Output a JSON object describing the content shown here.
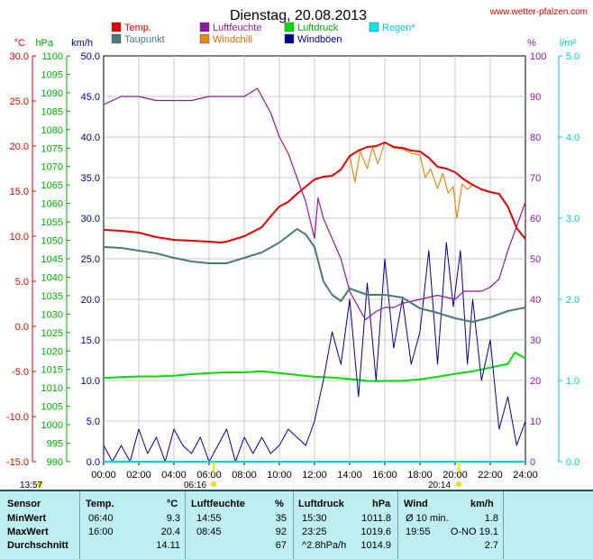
{
  "header": {
    "title": "Dienstag, 20.08.2013",
    "source": "www.wetter-pfalzen.com"
  },
  "units": {
    "temp": "°C",
    "pressure": "hPa",
    "wind": "km/h",
    "humidity": "%",
    "rain": "l/m²"
  },
  "colors": {
    "temp": "#e00000",
    "dewpoint": "#4a7a78",
    "humidity": "#8b1a9a",
    "windchill": "#e08a1a",
    "pressure": "#00dd00",
    "gust": "#00008b",
    "rain": "#00d8d8",
    "temp_axis": "#e00000",
    "pressure_axis": "#00aa00",
    "humidity_axis": "#8b1a9a",
    "rain_axis": "#00cccc",
    "sun": "#f0e000",
    "table_bg": "#bfeef1"
  },
  "legend": [
    {
      "label": "Temp.",
      "color": "#e00000",
      "text_color": "#e00000"
    },
    {
      "label": "Luftfeuchte",
      "color": "#8b1a9a",
      "text_color": "#8b1a9a"
    },
    {
      "label": "Luftdruck",
      "color": "#00dd00",
      "text_color": "#00aa00"
    },
    {
      "label": "Regen*",
      "color": "#00e8e8",
      "text_color": "#00cccc"
    },
    {
      "label": "Taupunkt",
      "color": "#4a7a78",
      "text_color": "#4a7a78"
    },
    {
      "label": "Windchill",
      "color": "#e08a1a",
      "text_color": "#e06a00"
    },
    {
      "label": "Windböen",
      "color": "#00008b",
      "text_color": "#00008b"
    }
  ],
  "sun": {
    "sunrise": "06:16",
    "sunset": "20:14",
    "sunshine": "13:57"
  },
  "table": {
    "headers": [
      "Sensor",
      "Temp.",
      "°C",
      "Luftfeuchte",
      "%",
      "Luftdruck",
      "hPa",
      "Wind",
      "km/h"
    ],
    "rows": [
      {
        "label": "MinWert",
        "t_time": "06:40",
        "t_val": "9.3",
        "h_time": "14:55",
        "h_val": "35",
        "p_time": "15:30",
        "p_val": "1011.8",
        "w_time": "Ø 10 min.",
        "w_val": "1.8"
      },
      {
        "label": "MaxWert",
        "t_time": "16:00",
        "t_val": "20.4",
        "h_time": "08:45",
        "h_val": "92",
        "p_time": "23:25",
        "p_val": "1019.6",
        "w_time": "19:55",
        "w_val": "O-NO 19.1"
      },
      {
        "label": "Durchschnitt",
        "t_time": "",
        "t_val": "14.11",
        "h_time": "",
        "h_val": "67",
        "p_time": "^2.8hPa/h",
        "p_val": "1014.9",
        "w_time": "",
        "w_val": "2.7"
      }
    ]
  },
  "chart_data": {
    "type": "line",
    "title": "Dienstag, 20.08.2013",
    "x_ticks": [
      "00:00",
      "02:00",
      "04:00",
      "06:00",
      "08:00",
      "10:00",
      "12:00",
      "14:00",
      "16:00",
      "18:00",
      "20:00",
      "22:00",
      "24:00"
    ],
    "xlim": [
      0,
      24
    ],
    "axes": {
      "temp": {
        "label": "°C",
        "lim": [
          -15,
          30
        ],
        "ticks": [
          "30.0",
          "25.0",
          "20.0",
          "15.0",
          "10.0",
          "5.0",
          "0.0",
          "-5.0",
          "-10.0",
          "-15.0"
        ]
      },
      "pressure": {
        "label": "hPa",
        "lim": [
          990,
          1100
        ],
        "ticks": [
          "1100",
          "1095",
          "1090",
          "1085",
          "1080",
          "1075",
          "1070",
          "1065",
          "1060",
          "1055",
          "1050",
          "1045",
          "1040",
          "1035",
          "1030",
          "1025",
          "1020",
          "1015",
          "1010",
          "1005",
          "1000",
          "995",
          "990"
        ]
      },
      "wind": {
        "label": "km/h",
        "lim": [
          0,
          50
        ],
        "ticks": [
          "50.0",
          "45.0",
          "40.0",
          "35.0",
          "30.0",
          "25.0",
          "20.0",
          "15.0",
          "10.0",
          "5.0",
          "0.0"
        ]
      },
      "humidity": {
        "label": "%",
        "lim": [
          0,
          100
        ],
        "ticks": [
          "100",
          "90",
          "80",
          "70",
          "60",
          "50",
          "40",
          "30",
          "20",
          "10",
          "0"
        ]
      },
      "rain": {
        "label": "l/m²",
        "lim": [
          0,
          5
        ],
        "ticks": [
          "5.0",
          "4.0",
          "3.0",
          "2.0",
          "1.0",
          "0.0"
        ]
      }
    },
    "grid": true,
    "legend_position": "top",
    "series": [
      {
        "name": "Temp.",
        "axis": "temp",
        "color": "#e00000",
        "x": [
          0,
          1,
          2,
          3,
          4,
          5,
          6,
          6.67,
          7,
          8,
          9,
          9.5,
          10,
          10.5,
          11,
          12,
          12.5,
          13,
          13.5,
          14,
          14.5,
          15,
          15.5,
          16,
          16.5,
          17,
          17.5,
          18,
          18.5,
          19,
          19.5,
          20,
          20.5,
          21,
          21.5,
          22,
          22.5,
          23,
          23.5,
          24
        ],
        "y": [
          10.7,
          10.6,
          10.4,
          9.9,
          9.6,
          9.5,
          9.4,
          9.3,
          9.4,
          10.0,
          11.0,
          12.2,
          13.3,
          13.8,
          14.7,
          16.3,
          16.6,
          16.7,
          17.4,
          18.9,
          19.5,
          19.9,
          20.0,
          20.4,
          19.9,
          19.8,
          19.5,
          19.4,
          18.7,
          17.7,
          17.5,
          17.1,
          16.3,
          15.7,
          15.2,
          14.9,
          14.7,
          13.3,
          10.9,
          9.7
        ]
      },
      {
        "name": "Luftfeuchte",
        "axis": "humidity",
        "color": "#8b1a9a",
        "x": [
          0,
          0.5,
          1,
          2,
          3,
          4,
          5,
          6,
          7,
          8,
          8.75,
          9,
          9.5,
          10,
          10.5,
          11,
          11.5,
          12,
          12.2,
          12.5,
          13,
          13.5,
          14,
          14.5,
          14.9,
          15.5,
          16,
          16.5,
          17,
          18,
          19,
          20,
          20.5,
          21,
          21.5,
          22,
          22.5,
          23,
          23.5,
          24
        ],
        "y": [
          88,
          89,
          90,
          90,
          89,
          89,
          89,
          90,
          90,
          90,
          92,
          90,
          86,
          80,
          76,
          70,
          64,
          55,
          65,
          60,
          55,
          50,
          42,
          38,
          35,
          37,
          38,
          38,
          39,
          40,
          41,
          40,
          42,
          42,
          42,
          43,
          45,
          52,
          58,
          64
        ]
      },
      {
        "name": "Taupunkt",
        "axis": "temp",
        "color": "#4a7a78",
        "x": [
          0,
          1,
          2,
          3,
          4,
          5,
          6,
          7,
          8,
          9,
          10,
          11,
          11.5,
          12,
          12.5,
          13,
          13.5,
          14,
          15,
          16,
          17,
          18,
          19,
          20,
          21,
          22,
          23,
          24
        ],
        "y": [
          8.8,
          8.7,
          8.4,
          8.1,
          7.6,
          7.2,
          7.0,
          7.0,
          7.6,
          8.2,
          9.3,
          10.8,
          10.2,
          8.8,
          5.0,
          3.5,
          2.8,
          4.2,
          3.5,
          3.5,
          3.2,
          2.0,
          1.5,
          0.9,
          0.5,
          1.0,
          1.7,
          2.1
        ]
      },
      {
        "name": "Windchill",
        "axis": "temp",
        "color": "#e08a1a",
        "x": [
          13.5,
          14,
          14.3,
          14.6,
          15,
          15.3,
          15.6,
          16,
          16.5,
          17,
          17.5,
          18,
          18.3,
          18.6,
          19,
          19.3,
          19.6,
          19.9,
          20.1,
          20.4,
          20.7,
          21
        ],
        "y": [
          17.4,
          18.9,
          16.0,
          19.4,
          17.5,
          19.9,
          18.0,
          20.4,
          19.8,
          19.7,
          19.2,
          19.0,
          16.5,
          17.5,
          15.3,
          17.0,
          14.8,
          15.5,
          12.0,
          15.8,
          15.2,
          15.7
        ]
      },
      {
        "name": "Luftdruck",
        "axis": "pressure",
        "color": "#00dd00",
        "x": [
          0,
          1,
          2,
          3,
          4,
          5,
          6,
          7,
          8,
          9,
          10,
          11,
          12,
          13,
          14,
          15,
          15.5,
          16,
          17,
          18,
          19,
          20,
          21,
          22,
          23,
          23.4,
          24
        ],
        "y": [
          1012.7,
          1012.9,
          1013.1,
          1013.1,
          1013.3,
          1013.7,
          1014.0,
          1014.2,
          1014.2,
          1014.5,
          1014.0,
          1013.5,
          1013.0,
          1012.8,
          1012.4,
          1011.9,
          1011.8,
          1011.9,
          1011.9,
          1012.3,
          1013.0,
          1013.8,
          1014.5,
          1015.5,
          1016.5,
          1019.6,
          1018.0
        ]
      },
      {
        "name": "Windböen",
        "axis": "wind",
        "color": "#00008b",
        "x": [
          0,
          0.5,
          1,
          1.5,
          2,
          2.5,
          3,
          3.5,
          4,
          4.5,
          5,
          5.5,
          6,
          6.5,
          7,
          7.5,
          8,
          8.5,
          9,
          9.5,
          10,
          10.5,
          11,
          11.5,
          12,
          12.5,
          13,
          13.5,
          14,
          14.5,
          15,
          15.5,
          16,
          16.5,
          17,
          17.5,
          18,
          18.5,
          19,
          19.5,
          19.9,
          20.3,
          20.7,
          21,
          21.5,
          22,
          22.5,
          23,
          23.5,
          24
        ],
        "y": [
          2,
          0,
          2,
          0,
          4,
          1,
          3,
          0,
          4,
          2,
          1,
          3,
          0,
          2,
          4,
          0,
          3,
          1,
          3,
          1,
          2,
          4,
          3,
          2,
          5,
          10,
          16,
          12,
          20,
          8,
          22,
          10,
          25,
          14,
          20,
          12,
          16,
          26,
          12,
          27,
          19.1,
          26,
          12,
          20,
          10,
          15,
          4,
          8,
          2,
          5
        ]
      }
    ],
    "annotations": [
      "06:16",
      "20:14",
      "13:57"
    ]
  }
}
